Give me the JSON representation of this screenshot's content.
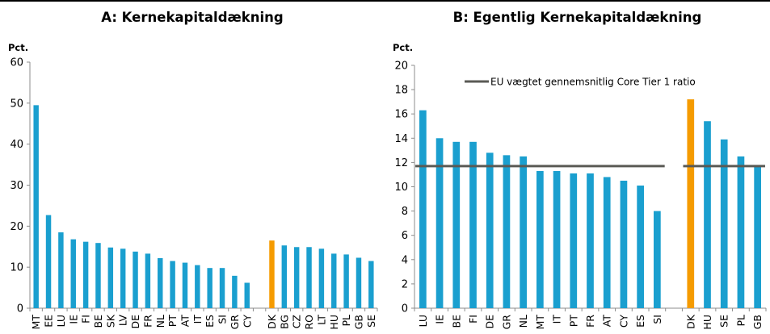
{
  "colors": {
    "bar": "#1a9fcf",
    "highlight": "#f59b00",
    "avg_line": "#5a5a55",
    "axis": "#8c8c8c"
  },
  "chart_data": [
    {
      "type": "bar",
      "title": "A: Kernekapitaldækning",
      "ylabel": "Pct.",
      "ylim": [
        0,
        60
      ],
      "yticks": [
        0,
        10,
        20,
        30,
        40,
        50,
        60
      ],
      "grid": false,
      "groups": [
        {
          "categories": [
            "MT",
            "EE",
            "LU",
            "IE",
            "FI",
            "BE",
            "SK",
            "LV",
            "DE",
            "FR",
            "NL",
            "PT",
            "AT",
            "IT",
            "ES",
            "SI",
            "GR",
            "CY"
          ],
          "values": [
            49.5,
            22.7,
            18.5,
            16.8,
            16.2,
            15.9,
            14.8,
            14.5,
            13.8,
            13.3,
            12.2,
            11.5,
            11.1,
            10.5,
            9.8,
            9.8,
            7.9,
            6.2
          ]
        },
        {
          "categories": [
            "DK",
            "BG",
            "CZ",
            "RO",
            "LT",
            "HU",
            "PL",
            "GB",
            "SE"
          ],
          "values": [
            16.5,
            15.3,
            14.9,
            14.9,
            14.5,
            13.3,
            13.1,
            12.3,
            11.5
          ]
        }
      ],
      "highlight": "DK"
    },
    {
      "type": "bar",
      "title": "B: Egentlig Kernekapitaldækning",
      "ylabel": "Pct.",
      "ylim": [
        0,
        20
      ],
      "yticks": [
        0,
        2,
        4,
        6,
        8,
        10,
        12,
        14,
        16,
        18,
        20
      ],
      "grid": false,
      "legend": "EU vægtet gennemsnitlig Core Tier 1 ratio",
      "legend_position": "top",
      "reference_line": 11.7,
      "groups": [
        {
          "categories": [
            "LU",
            "IE",
            "BE",
            "FI",
            "DE",
            "GR",
            "NL",
            "MT",
            "IT",
            "PT",
            "FR",
            "AT",
            "CY",
            "ES",
            "SI"
          ],
          "values": [
            16.3,
            14.0,
            13.7,
            13.7,
            12.8,
            12.6,
            12.5,
            11.3,
            11.3,
            11.1,
            11.1,
            10.8,
            10.5,
            10.1,
            8.0
          ]
        },
        {
          "categories": [
            "DK",
            "HU",
            "SE",
            "PL",
            "GB"
          ],
          "values": [
            17.2,
            15.4,
            13.9,
            12.5,
            11.7
          ]
        }
      ],
      "highlight": "DK"
    }
  ]
}
